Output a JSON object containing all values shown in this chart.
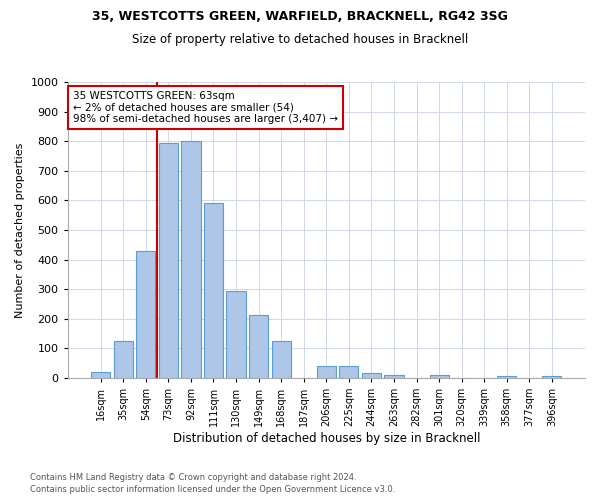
{
  "title1": "35, WESTCOTTS GREEN, WARFIELD, BRACKNELL, RG42 3SG",
  "title2": "Size of property relative to detached houses in Bracknell",
  "xlabel": "Distribution of detached houses by size in Bracknell",
  "ylabel": "Number of detached properties",
  "bar_labels": [
    "16sqm",
    "35sqm",
    "54sqm",
    "73sqm",
    "92sqm",
    "111sqm",
    "130sqm",
    "149sqm",
    "168sqm",
    "187sqm",
    "206sqm",
    "225sqm",
    "244sqm",
    "263sqm",
    "282sqm",
    "301sqm",
    "320sqm",
    "339sqm",
    "358sqm",
    "377sqm",
    "396sqm"
  ],
  "bar_values": [
    20,
    125,
    430,
    795,
    800,
    590,
    295,
    213,
    125,
    0,
    40,
    40,
    15,
    10,
    0,
    10,
    0,
    0,
    8,
    0,
    8
  ],
  "bar_color": "#aec6e8",
  "bar_edge_color": "#5a9fd4",
  "vline_x_index": 2,
  "vline_color": "#cc0000",
  "annotation_text": "35 WESTCOTTS GREEN: 63sqm\n← 2% of detached houses are smaller (54)\n98% of semi-detached houses are larger (3,407) →",
  "annotation_box_color": "#ffffff",
  "annotation_box_edge": "#cc0000",
  "ylim": [
    0,
    1000
  ],
  "yticks": [
    0,
    100,
    200,
    300,
    400,
    500,
    600,
    700,
    800,
    900,
    1000
  ],
  "footer1": "Contains HM Land Registry data © Crown copyright and database right 2024.",
  "footer2": "Contains public sector information licensed under the Open Government Licence v3.0.",
  "bg_color": "#ffffff",
  "grid_color": "#d0d8e8"
}
